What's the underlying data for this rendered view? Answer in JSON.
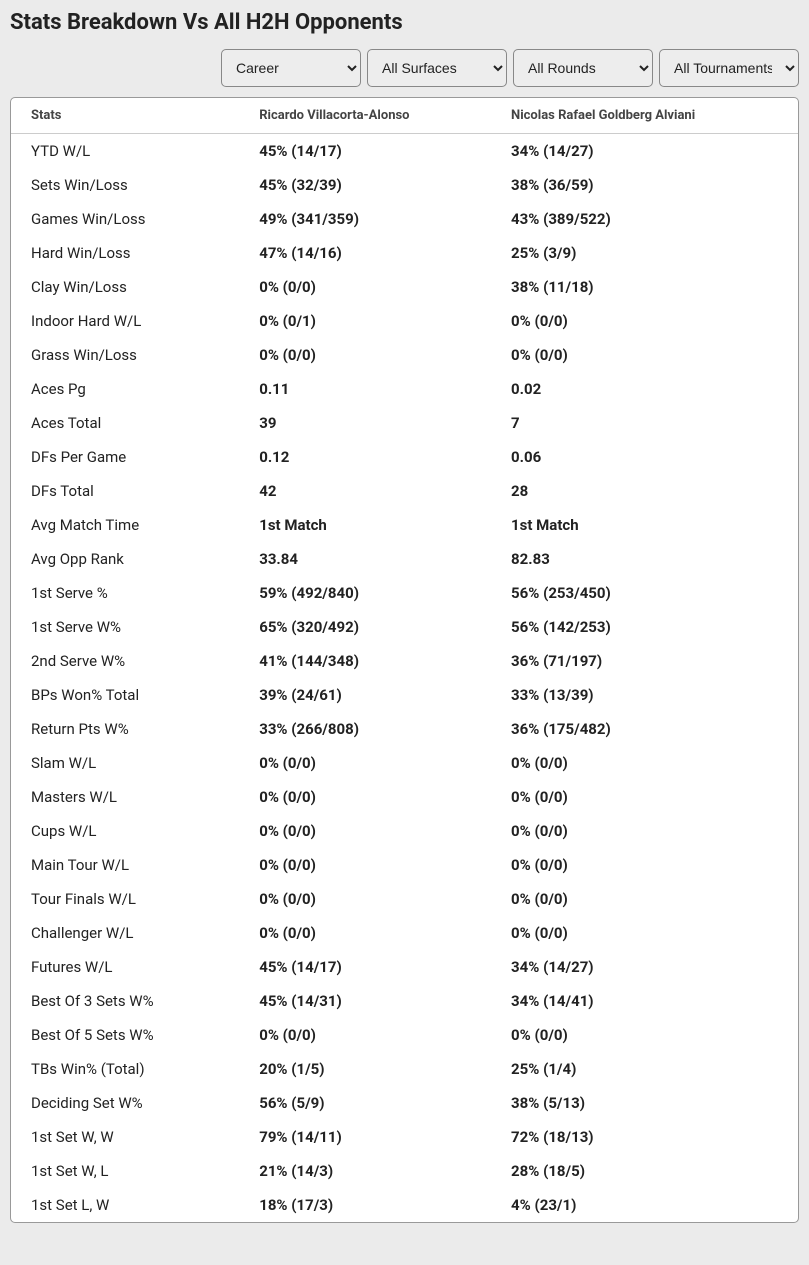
{
  "title": "Stats Breakdown Vs All H2H Opponents",
  "filters": {
    "career": {
      "selected": "Career"
    },
    "surfaces": {
      "selected": "All Surfaces"
    },
    "rounds": {
      "selected": "All Rounds"
    },
    "tournaments": {
      "selected": "All Tournaments"
    }
  },
  "table": {
    "columns": {
      "stats": "Stats",
      "player1": "Ricardo Villacorta-Alonso",
      "player2": "Nicolas Rafael Goldberg Alviani"
    },
    "rows": [
      {
        "stat": "YTD W/L",
        "p1": "45% (14/17)",
        "p2": "34% (14/27)"
      },
      {
        "stat": "Sets Win/Loss",
        "p1": "45% (32/39)",
        "p2": "38% (36/59)"
      },
      {
        "stat": "Games Win/Loss",
        "p1": "49% (341/359)",
        "p2": "43% (389/522)"
      },
      {
        "stat": "Hard Win/Loss",
        "p1": "47% (14/16)",
        "p2": "25% (3/9)"
      },
      {
        "stat": "Clay Win/Loss",
        "p1": "0% (0/0)",
        "p2": "38% (11/18)"
      },
      {
        "stat": "Indoor Hard W/L",
        "p1": "0% (0/1)",
        "p2": "0% (0/0)"
      },
      {
        "stat": "Grass Win/Loss",
        "p1": "0% (0/0)",
        "p2": "0% (0/0)"
      },
      {
        "stat": "Aces Pg",
        "p1": "0.11",
        "p2": "0.02"
      },
      {
        "stat": "Aces Total",
        "p1": "39",
        "p2": "7"
      },
      {
        "stat": "DFs Per Game",
        "p1": "0.12",
        "p2": "0.06"
      },
      {
        "stat": "DFs Total",
        "p1": "42",
        "p2": "28"
      },
      {
        "stat": "Avg Match Time",
        "p1": "1st Match",
        "p2": "1st Match"
      },
      {
        "stat": "Avg Opp Rank",
        "p1": "33.84",
        "p2": "82.83"
      },
      {
        "stat": "1st Serve %",
        "p1": "59% (492/840)",
        "p2": "56% (253/450)"
      },
      {
        "stat": "1st Serve W%",
        "p1": "65% (320/492)",
        "p2": "56% (142/253)"
      },
      {
        "stat": "2nd Serve W%",
        "p1": "41% (144/348)",
        "p2": "36% (71/197)"
      },
      {
        "stat": "BPs Won% Total",
        "p1": "39% (24/61)",
        "p2": "33% (13/39)"
      },
      {
        "stat": "Return Pts W%",
        "p1": "33% (266/808)",
        "p2": "36% (175/482)"
      },
      {
        "stat": "Slam W/L",
        "p1": "0% (0/0)",
        "p2": "0% (0/0)"
      },
      {
        "stat": "Masters W/L",
        "p1": "0% (0/0)",
        "p2": "0% (0/0)"
      },
      {
        "stat": "Cups W/L",
        "p1": "0% (0/0)",
        "p2": "0% (0/0)"
      },
      {
        "stat": "Main Tour W/L",
        "p1": "0% (0/0)",
        "p2": "0% (0/0)"
      },
      {
        "stat": "Tour Finals W/L",
        "p1": "0% (0/0)",
        "p2": "0% (0/0)"
      },
      {
        "stat": "Challenger W/L",
        "p1": "0% (0/0)",
        "p2": "0% (0/0)"
      },
      {
        "stat": "Futures W/L",
        "p1": "45% (14/17)",
        "p2": "34% (14/27)"
      },
      {
        "stat": "Best Of 3 Sets W%",
        "p1": "45% (14/31)",
        "p2": "34% (14/41)"
      },
      {
        "stat": "Best Of 5 Sets W%",
        "p1": "0% (0/0)",
        "p2": "0% (0/0)"
      },
      {
        "stat": "TBs Win% (Total)",
        "p1": "20% (1/5)",
        "p2": "25% (1/4)"
      },
      {
        "stat": "Deciding Set W%",
        "p1": "56% (5/9)",
        "p2": "38% (5/13)"
      },
      {
        "stat": "1st Set W, W",
        "p1": "79% (14/11)",
        "p2": "72% (18/13)"
      },
      {
        "stat": "1st Set W, L",
        "p1": "21% (14/3)",
        "p2": "28% (18/5)"
      },
      {
        "stat": "1st Set L, W",
        "p1": "18% (17/3)",
        "p2": "4% (23/1)"
      }
    ]
  },
  "colors": {
    "page_bg": "#ebebeb",
    "card_bg": "#ffffff",
    "border": "#999999",
    "header_border": "#cccccc",
    "text": "#222222",
    "header_text": "#444444",
    "select_bg": "#ededed",
    "select_border": "#888888"
  }
}
